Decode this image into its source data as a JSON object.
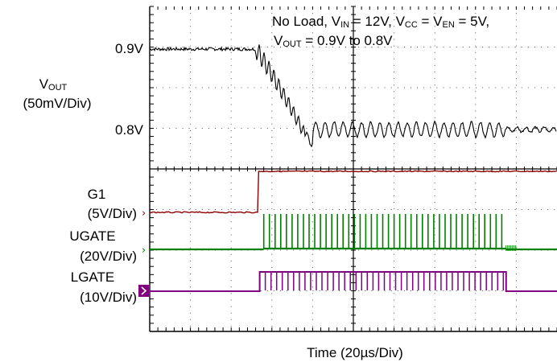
{
  "chart_data": {
    "type": "line",
    "annotation": {
      "line1": [
        "No Load, V",
        "IN",
        " = 12V, V",
        "CC",
        " = V",
        "EN",
        " = 5V,"
      ],
      "line2": [
        "V",
        "OUT",
        " = 0.9V to 0.8V"
      ]
    },
    "xlabel": "Time  (20µs/Div)",
    "grid": true,
    "x_divisions": 10,
    "y_divisions": 8,
    "time_per_div_us": 20,
    "channels": [
      {
        "name": "VOUT",
        "label_main": "V",
        "label_sub": "OUT",
        "scale": "(50mV/Div)",
        "ticks": [
          "0.9V",
          "0.8V"
        ],
        "tick_values": [
          0.9,
          0.8
        ],
        "color": "#000000",
        "units": "V",
        "initial": 0.9,
        "final": 0.8,
        "transition_start_us": 52,
        "transition_end_us": 76
      },
      {
        "name": "G1",
        "label": "G1",
        "scale": "(5V/Div)",
        "color": "#8b0000",
        "low_to_high_at_us": 53.5
      },
      {
        "name": "UGATE",
        "label": "UGATE",
        "scale": "(20V/Div)",
        "color": "#008000",
        "pulses_from_us": 56,
        "pulses_to_us": 175
      },
      {
        "name": "LGATE",
        "label": "LGATE",
        "scale": "(10V/Div)",
        "color": "#800080",
        "active_from_us": 54,
        "active_to_us": 175
      }
    ]
  }
}
